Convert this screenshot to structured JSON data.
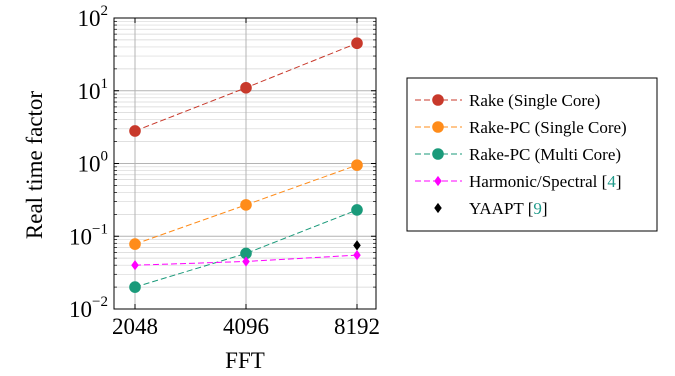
{
  "chart_data": {
    "type": "line",
    "x": [
      2048,
      4096,
      8192
    ],
    "xticks": [
      "2048",
      "4096",
      "8192"
    ],
    "xlabel": "FFT",
    "ylabel": "Real time factor",
    "yscale": "log",
    "ylim": [
      0.01,
      100
    ],
    "yticks": [
      {
        "base": "10",
        "exp": "−2"
      },
      {
        "base": "10",
        "exp": "−1"
      },
      {
        "base": "10",
        "exp": "0"
      },
      {
        "base": "10",
        "exp": "1"
      },
      {
        "base": "10",
        "exp": "2"
      }
    ],
    "grid": true,
    "legend_position": "right",
    "series": [
      {
        "name": "Rake (Single Core)",
        "name_parts": [
          "Rake (Single Core)"
        ],
        "ref": "",
        "color": "#c8392b",
        "marker": "circle",
        "line": "dashed",
        "x": [
          2048,
          4096,
          8192
        ],
        "values": [
          2.8,
          11,
          45
        ]
      },
      {
        "name": "Rake-PC (Single Core)",
        "name_parts": [
          "Rake-PC (Single Core)"
        ],
        "ref": "",
        "color": "#ff8c1a",
        "marker": "circle",
        "line": "dashed",
        "x": [
          2048,
          4096,
          8192
        ],
        "values": [
          0.078,
          0.27,
          0.95
        ]
      },
      {
        "name": "Rake-PC (Multi Core)",
        "name_parts": [
          "Rake-PC (Multi Core)"
        ],
        "ref": "",
        "color": "#1a9a7a",
        "marker": "circle",
        "line": "dashed",
        "x": [
          2048,
          4096,
          8192
        ],
        "values": [
          0.02,
          0.058,
          0.23
        ]
      },
      {
        "name": "Harmonic/Spectral [4]",
        "name_parts": [
          "Harmonic/Spectral [",
          "4",
          "]"
        ],
        "ref": "4",
        "color": "#ff00ff",
        "marker": "diamond",
        "line": "dashed",
        "x": [
          2048,
          4096,
          8192
        ],
        "values": [
          0.04,
          0.045,
          0.055
        ]
      },
      {
        "name": "YAAPT [9]",
        "name_parts": [
          "YAAPT [",
          "9",
          "]"
        ],
        "ref": "9",
        "color": "#000000",
        "marker": "diamond",
        "line": "none",
        "x": [
          8192
        ],
        "values": [
          0.075
        ]
      }
    ]
  }
}
